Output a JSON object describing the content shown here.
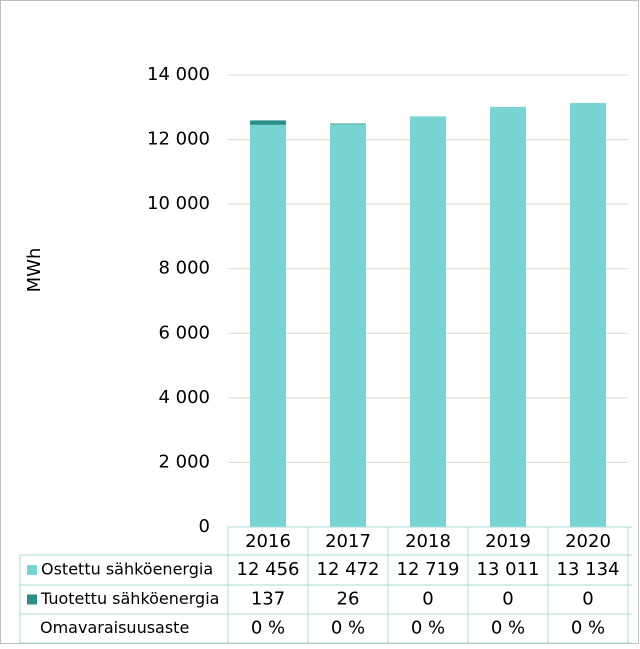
{
  "chart_data": {
    "type": "bar",
    "stacked": true,
    "ylabel": "MWh",
    "categories": [
      "2016",
      "2017",
      "2018",
      "2019",
      "2020"
    ],
    "series": [
      {
        "name": "Ostettu sähköenergia",
        "color": "#78d4d2",
        "values": [
          12456,
          12472,
          12719,
          13011,
          13134
        ],
        "value_labels": [
          "12 456",
          "12 472",
          "12 719",
          "13 011",
          "13 134"
        ]
      },
      {
        "name": "Tuotettu sähköenergia",
        "color": "#2a8f89",
        "values": [
          137,
          26,
          0,
          0,
          0
        ]
      }
    ],
    "rows": [
      {
        "name": "Omavaraisuusaste",
        "values": [
          0,
          0,
          0,
          0,
          0
        ],
        "value_labels": [
          "0 %",
          "0 %",
          "0 %",
          "0 %",
          "0 %"
        ]
      }
    ],
    "ylim": [
      0,
      14000
    ],
    "yticks": [
      0,
      {
        "value": 2000,
        "label": "2 000"
      },
      {
        "value": 4000,
        "label": "4 000"
      },
      {
        "value": 6000,
        "label": "6 000"
      },
      {
        "value": 8000,
        "label": "8 000"
      },
      {
        "value": 10000,
        "label": "10 000"
      },
      {
        "value": 12000,
        "label": "12 000"
      },
      {
        "value": 14000,
        "label": "14 000"
      }
    ],
    "grid": true
  }
}
